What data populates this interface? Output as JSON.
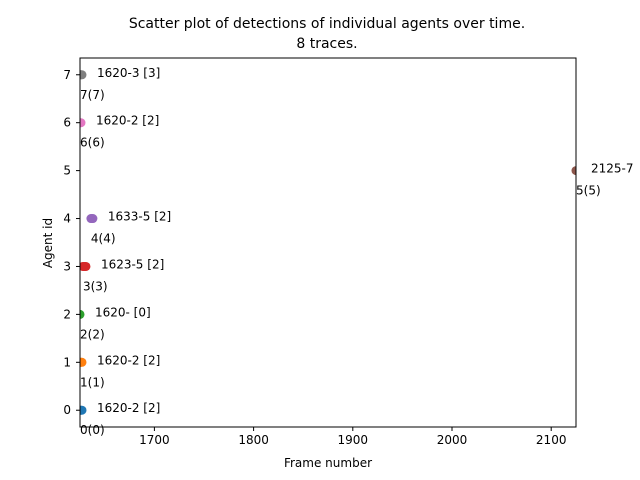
{
  "chart_data": {
    "type": "scatter",
    "title": "Scatter plot of detections of individual agents over time.",
    "subtitle": "8 traces.",
    "xlabel": "Frame number",
    "ylabel": "Agent id",
    "xlim": [
      1625,
      2125
    ],
    "ylim": [
      -0.35,
      7.35
    ],
    "xticks": [
      1700,
      1800,
      1900,
      2000,
      2100
    ],
    "yticks": [
      0,
      1,
      2,
      3,
      4,
      5,
      6,
      7
    ],
    "grid": false,
    "legend": "none",
    "series": [
      {
        "id_label": "0(0)",
        "trace_label": "1620-2 [2]",
        "color": "#1f77b4",
        "points": [
          {
            "x": 1625,
            "y": 0
          },
          {
            "x": 1626,
            "y": 0
          },
          {
            "x": 1627,
            "y": 0
          }
        ]
      },
      {
        "id_label": "1(1)",
        "trace_label": "1620-2 [2]",
        "color": "#ff7f0e",
        "points": [
          {
            "x": 1625,
            "y": 1
          },
          {
            "x": 1626,
            "y": 1
          },
          {
            "x": 1627,
            "y": 1
          }
        ]
      },
      {
        "id_label": "2(2)",
        "trace_label": "1620- [0]",
        "color": "#2ca02c",
        "points": [
          {
            "x": 1625,
            "y": 2
          }
        ]
      },
      {
        "id_label": "3(3)",
        "trace_label": "1623-5 [2]",
        "color": "#d62728",
        "points": [
          {
            "x": 1628,
            "y": 3
          },
          {
            "x": 1629,
            "y": 3
          },
          {
            "x": 1630,
            "y": 3
          },
          {
            "x": 1631,
            "y": 3
          }
        ]
      },
      {
        "id_label": "4(4)",
        "trace_label": "1633-5 [2]",
        "color": "#9467bd",
        "points": [
          {
            "x": 1636,
            "y": 4
          },
          {
            "x": 1637,
            "y": 4
          },
          {
            "x": 1638,
            "y": 4
          }
        ]
      },
      {
        "id_label": "5(5)",
        "trace_label": "2125-7",
        "color": "#8c564b",
        "points": [
          {
            "x": 2125,
            "y": 5
          }
        ]
      },
      {
        "id_label": "6(6)",
        "trace_label": "1620-2 [2]",
        "color": "#e377c2",
        "points": [
          {
            "x": 1625,
            "y": 6
          },
          {
            "x": 1626,
            "y": 6
          }
        ]
      },
      {
        "id_label": "7(7)",
        "trace_label": "1620-3 [3]",
        "color": "#7f7f7f",
        "points": [
          {
            "x": 1625,
            "y": 7
          },
          {
            "x": 1626,
            "y": 7
          },
          {
            "x": 1627,
            "y": 7
          }
        ]
      }
    ]
  }
}
